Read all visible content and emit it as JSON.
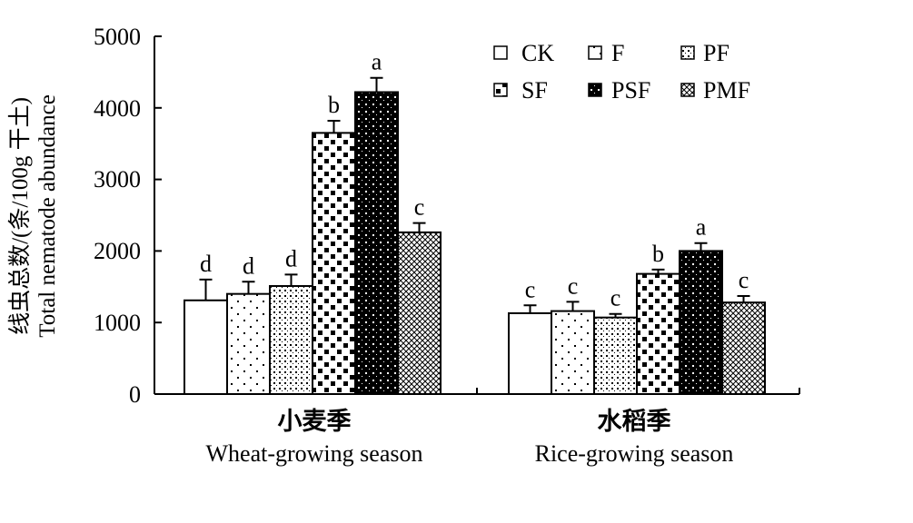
{
  "chart_data": {
    "type": "bar",
    "ylabel_cn": "线虫总数/(条/100g 干土)",
    "ylabel_en": "Total nematode abundance",
    "ylim": [
      0,
      5000
    ],
    "yticks": [
      "0",
      "1000",
      "2000",
      "3000",
      "4000",
      "5000"
    ],
    "categories": [
      {
        "cn": "小麦季",
        "en": "Wheat-growing season"
      },
      {
        "cn": "水稻季",
        "en": "Rice-growing season"
      }
    ],
    "legend_position": "top-right",
    "series": [
      {
        "name": "CK",
        "pattern": "blank",
        "values": [
          1310,
          1130
        ],
        "errors": [
          290,
          110
        ],
        "letters": [
          "d",
          "c"
        ]
      },
      {
        "name": "F",
        "pattern": "sparse-dots",
        "values": [
          1400,
          1160
        ],
        "errors": [
          170,
          130
        ],
        "letters": [
          "d",
          "c"
        ]
      },
      {
        "name": "PF",
        "pattern": "dense-dots",
        "values": [
          1510,
          1070
        ],
        "errors": [
          160,
          50
        ],
        "letters": [
          "d",
          "c"
        ]
      },
      {
        "name": "SF",
        "pattern": "checker-blocks",
        "values": [
          3650,
          1680
        ],
        "errors": [
          170,
          60
        ],
        "letters": [
          "b",
          "b"
        ]
      },
      {
        "name": "PSF",
        "pattern": "dark-dots",
        "values": [
          4220,
          2000
        ],
        "errors": [
          200,
          110
        ],
        "letters": [
          "a",
          "a"
        ]
      },
      {
        "name": "PMF",
        "pattern": "crosshatch",
        "values": [
          2260,
          1280
        ],
        "errors": [
          130,
          90
        ],
        "letters": [
          "c",
          "c"
        ]
      }
    ]
  }
}
